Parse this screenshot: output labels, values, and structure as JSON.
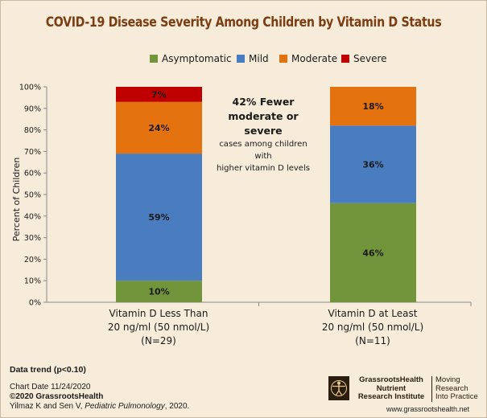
{
  "title": "COVID-19 Disease Severity Among Children by Vitamin D Status",
  "chart_data": {
    "type": "bar",
    "stacked": true,
    "title": "COVID-19 Disease Severity Among Children by Vitamin D Status",
    "ylabel": "Percent of Children",
    "xlabel": "",
    "ylim": [
      0,
      100
    ],
    "yticks": [
      "0%",
      "10%",
      "20%",
      "30%",
      "40%",
      "50%",
      "60%",
      "70%",
      "80%",
      "90%",
      "100%"
    ],
    "categories": [
      [
        "Vitamin D Less Than",
        "20 ng/ml (50 nmol/L)",
        "(N=29)"
      ],
      [
        "Vitamin D at Least",
        "20 ng/ml (50 nmol/L)",
        "(N=11)"
      ]
    ],
    "series": [
      {
        "name": "Asymptomatic",
        "color": "#72953c",
        "values": [
          10,
          46
        ],
        "labels": [
          "10%",
          "46%"
        ]
      },
      {
        "name": "Mild",
        "color": "#4a7cc0",
        "values": [
          59,
          36
        ],
        "labels": [
          "59%",
          "36%"
        ]
      },
      {
        "name": "Moderate",
        "color": "#e4730f",
        "values": [
          24,
          18
        ],
        "labels": [
          "24%",
          "18%"
        ]
      },
      {
        "name": "Severe",
        "color": "#c00000",
        "values": [
          7,
          0
        ],
        "labels": [
          "7%",
          ""
        ]
      }
    ],
    "legend_position": "top-right",
    "grid": false
  },
  "annotation": {
    "line1": "42% Fewer",
    "line2": "moderate or severe",
    "line3": "cases among children with",
    "line4": "higher vitamin D levels"
  },
  "footer": {
    "trend": "Data trend (p<0.10)",
    "chart_date": "Chart Date 11/24/2020",
    "copyright": "©2020 GrassrootsHealth",
    "citation_authors": "Yilmaz K and Sen V, ",
    "citation_journal": "Pediatric Pulmonology",
    "citation_year": ", 2020.",
    "logo_line1": "GrassrootsHealth",
    "logo_line2": "Nutrient",
    "logo_line3": "Research Institute",
    "tagline1": "Moving",
    "tagline2": "Research",
    "tagline3": "Into Practice",
    "website": "www.grassrootshealth.net"
  },
  "colors": {
    "background": "#f7ecda",
    "title": "#7a3e12"
  }
}
